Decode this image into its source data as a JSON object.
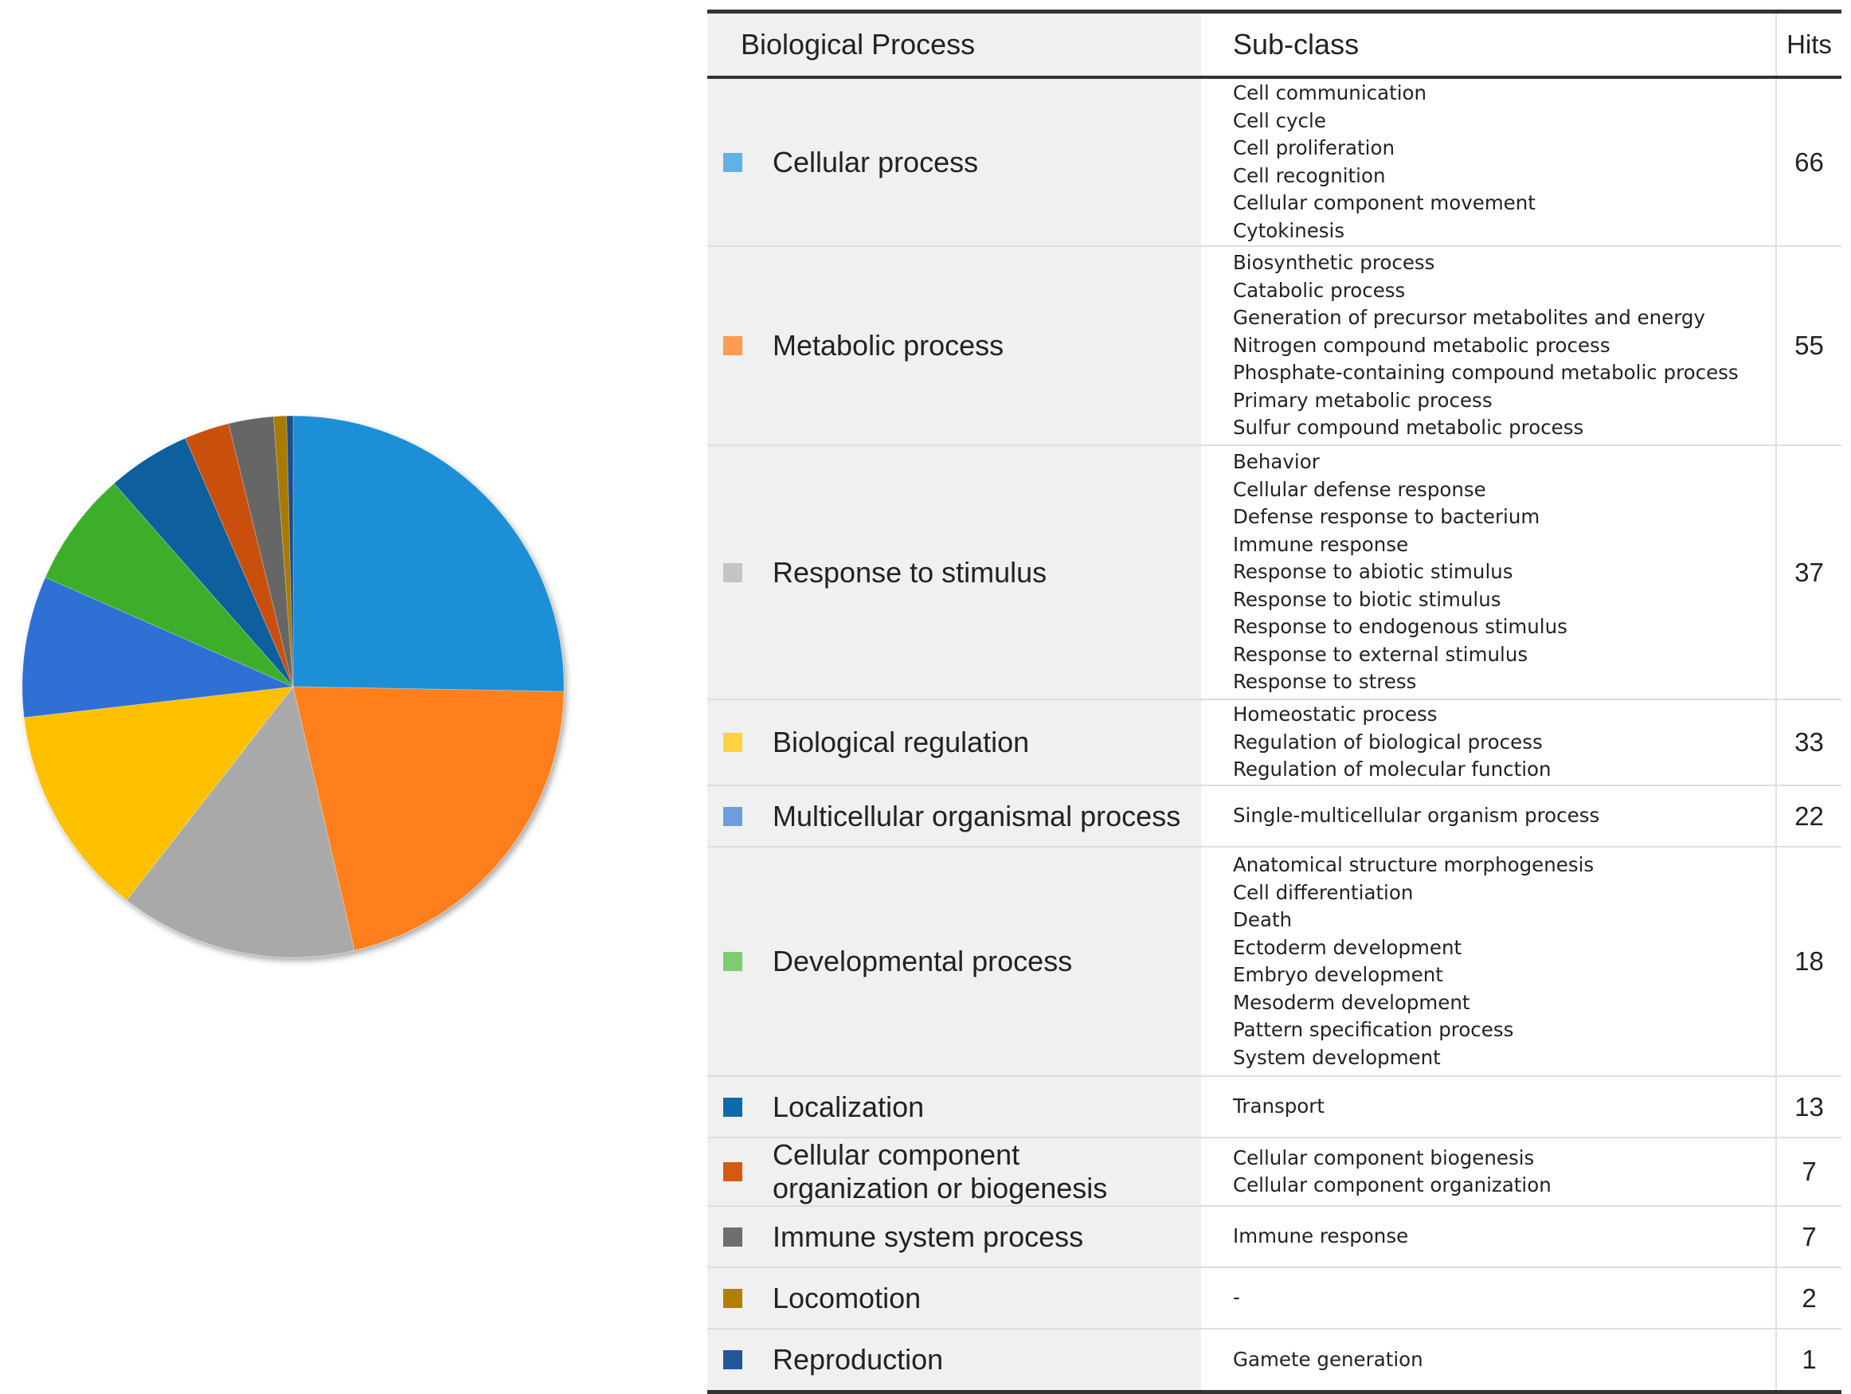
{
  "chart_data": {
    "type": "pie",
    "title": "",
    "slices": [
      {
        "label": "Cellular process",
        "value": 66,
        "color": "#1f8fd6"
      },
      {
        "label": "Metabolic process",
        "value": 55,
        "color": "#ff7f1f"
      },
      {
        "label": "Response to stimulus",
        "value": 37,
        "color": "#a9a9a9"
      },
      {
        "label": "Biological regulation",
        "value": 33,
        "color": "#ffc000"
      },
      {
        "label": "Multicellular organismal process",
        "value": 22,
        "color": "#2f6fd4"
      },
      {
        "label": "Developmental process",
        "value": 18,
        "color": "#3dae2b"
      },
      {
        "label": "Localization",
        "value": 13,
        "color": "#0c5e9e"
      },
      {
        "label": "Cellular component organization or biogenesis",
        "value": 7,
        "color": "#c9500f"
      },
      {
        "label": "Immune system process",
        "value": 7,
        "color": "#666666"
      },
      {
        "label": "Locomotion",
        "value": 2,
        "color": "#a97a00"
      },
      {
        "label": "Reproduction",
        "value": 1,
        "color": "#1f4d8c"
      }
    ]
  },
  "table": {
    "headers": {
      "process": "Biological Process",
      "subclass": "Sub-class",
      "hits": "Hits"
    },
    "rows": [
      {
        "process_lines": [
          "Cellular process"
        ],
        "swatch": "#5fb3e4",
        "subclasses": [
          "Cell communication",
          "Cell cycle",
          "Cell proliferation",
          "Cell recognition",
          "Cellular component movement",
          "Cytokinesis"
        ],
        "hits": "66"
      },
      {
        "process_lines": [
          "Metabolic process"
        ],
        "swatch": "#ff9a52",
        "subclasses": [
          "Biosynthetic process",
          "Catabolic process",
          "Generation of precursor metabolites and energy",
          "Nitrogen compound metabolic process",
          "Phosphate-containing compound metabolic process",
          "Primary metabolic process",
          "Sulfur compound metabolic process"
        ],
        "hits": "55"
      },
      {
        "process_lines": [
          "Response to stimulus"
        ],
        "swatch": "#c4c4c4",
        "subclasses": [
          "Behavior",
          "Cellular defense response",
          "Defense response to bacterium",
          "Immune response",
          "Response to abiotic stimulus",
          "Response to biotic stimulus",
          "Response to endogenous stimulus",
          "Response to external stimulus",
          "Response to stress"
        ],
        "hits": "37"
      },
      {
        "process_lines": [
          "Biological regulation"
        ],
        "swatch": "#ffd23f",
        "subclasses": [
          "Homeostatic process",
          "Regulation of biological process",
          "Regulation of molecular function"
        ],
        "hits": "33"
      },
      {
        "process_lines": [
          "Multicellular organismal process"
        ],
        "swatch": "#6f9be0",
        "subclasses": [
          "Single-multicellular organism process"
        ],
        "hits": "22"
      },
      {
        "process_lines": [
          "Developmental process"
        ],
        "swatch": "#7fcb6f",
        "subclasses": [
          "Anatomical structure morphogenesis",
          "Cell differentiation",
          "Death",
          "Ectoderm development",
          "Embryo development",
          "Mesoderm development",
          "Pattern specification process",
          "System development"
        ],
        "hits": "18"
      },
      {
        "process_lines": [
          "Localization"
        ],
        "swatch": "#0e6aa8",
        "subclasses": [
          "Transport"
        ],
        "hits": "13"
      },
      {
        "process_lines": [
          "Cellular component",
          "organization or biogenesis"
        ],
        "swatch": "#d45a12",
        "subclasses": [
          "Cellular component biogenesis",
          "Cellular component organization"
        ],
        "hits": "7"
      },
      {
        "process_lines": [
          "Immune system process"
        ],
        "swatch": "#6e6e6e",
        "subclasses": [
          "Immune response"
        ],
        "hits": "7"
      },
      {
        "process_lines": [
          "Locomotion"
        ],
        "swatch": "#b07f00",
        "subclasses": [
          "-"
        ],
        "hits": "2"
      },
      {
        "process_lines": [
          "Reproduction"
        ],
        "swatch": "#24579a",
        "subclasses": [
          "Gamete generation"
        ],
        "hits": "1"
      }
    ]
  }
}
